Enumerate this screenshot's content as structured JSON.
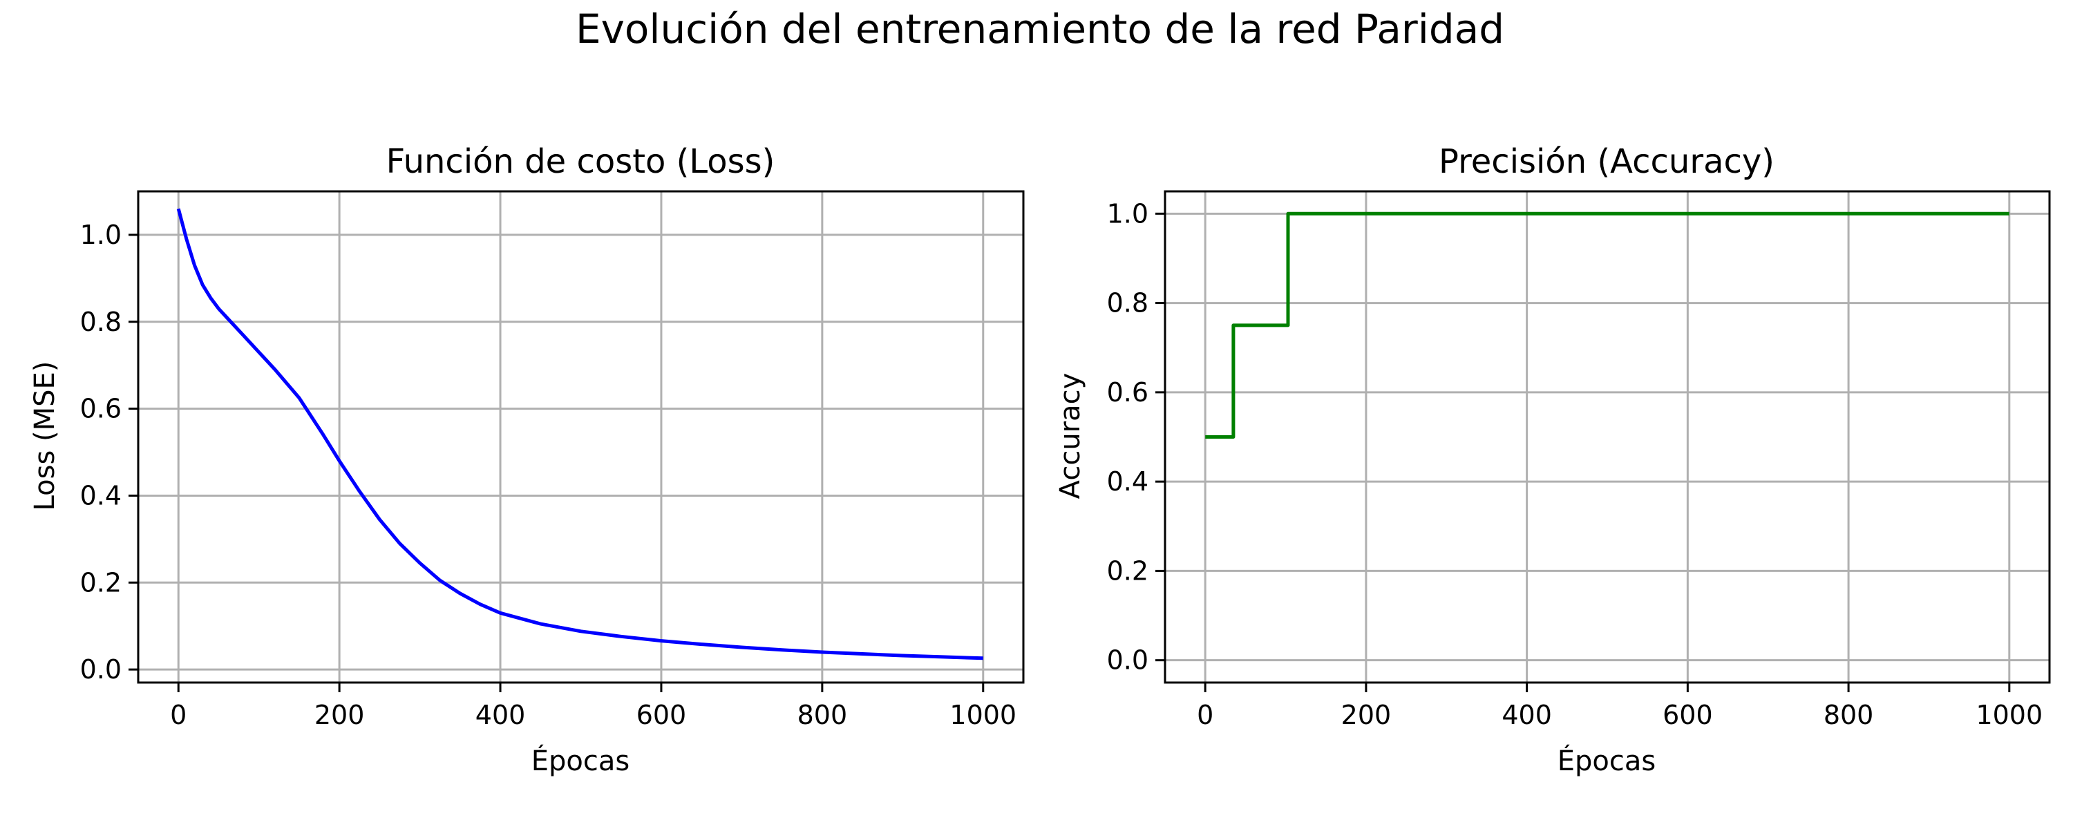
{
  "figure": {
    "suptitle": "Evolución del entrenamiento de la red Paridad"
  },
  "chart_data": [
    {
      "type": "line",
      "title": "Función de costo (Loss)",
      "xlabel": "Épocas",
      "ylabel": "Loss (MSE)",
      "xlim": [
        -50,
        1050
      ],
      "ylim": [
        -0.03,
        1.1
      ],
      "xticks": [
        0,
        200,
        400,
        600,
        800,
        1000
      ],
      "xtick_labels": [
        "0",
        "200",
        "400",
        "600",
        "800",
        "1000"
      ],
      "yticks": [
        0.0,
        0.2,
        0.4,
        0.6,
        0.8,
        1.0
      ],
      "ytick_labels": [
        "0.0",
        "0.2",
        "0.4",
        "0.6",
        "0.8",
        "1.0"
      ],
      "grid": true,
      "series": [
        {
          "name": "Loss",
          "color": "#0000ff",
          "x": [
            0,
            10,
            20,
            30,
            40,
            50,
            60,
            80,
            100,
            120,
            150,
            180,
            200,
            225,
            250,
            275,
            300,
            325,
            350,
            375,
            400,
            450,
            500,
            550,
            600,
            650,
            700,
            750,
            800,
            850,
            900,
            950,
            1000
          ],
          "y": [
            1.06,
            0.99,
            0.93,
            0.885,
            0.855,
            0.83,
            0.81,
            0.77,
            0.73,
            0.69,
            0.625,
            0.54,
            0.48,
            0.41,
            0.345,
            0.29,
            0.245,
            0.205,
            0.175,
            0.15,
            0.13,
            0.105,
            0.088,
            0.076,
            0.066,
            0.058,
            0.051,
            0.045,
            0.04,
            0.036,
            0.032,
            0.029,
            0.026
          ]
        }
      ]
    },
    {
      "type": "line",
      "title": "Precisión (Accuracy)",
      "xlabel": "Épocas",
      "ylabel": "Accuracy",
      "xlim": [
        -50,
        1050
      ],
      "ylim": [
        -0.05,
        1.05
      ],
      "xticks": [
        0,
        200,
        400,
        600,
        800,
        1000
      ],
      "xtick_labels": [
        "0",
        "200",
        "400",
        "600",
        "800",
        "1000"
      ],
      "yticks": [
        0.0,
        0.2,
        0.4,
        0.6,
        0.8,
        1.0
      ],
      "ytick_labels": [
        "0.0",
        "0.2",
        "0.4",
        "0.6",
        "0.8",
        "1.0"
      ],
      "grid": true,
      "series": [
        {
          "name": "Accuracy",
          "color": "#008000",
          "x": [
            0,
            35,
            35,
            103,
            103,
            1000
          ],
          "y": [
            0.5,
            0.5,
            0.75,
            0.75,
            1.0,
            1.0
          ]
        }
      ]
    }
  ]
}
